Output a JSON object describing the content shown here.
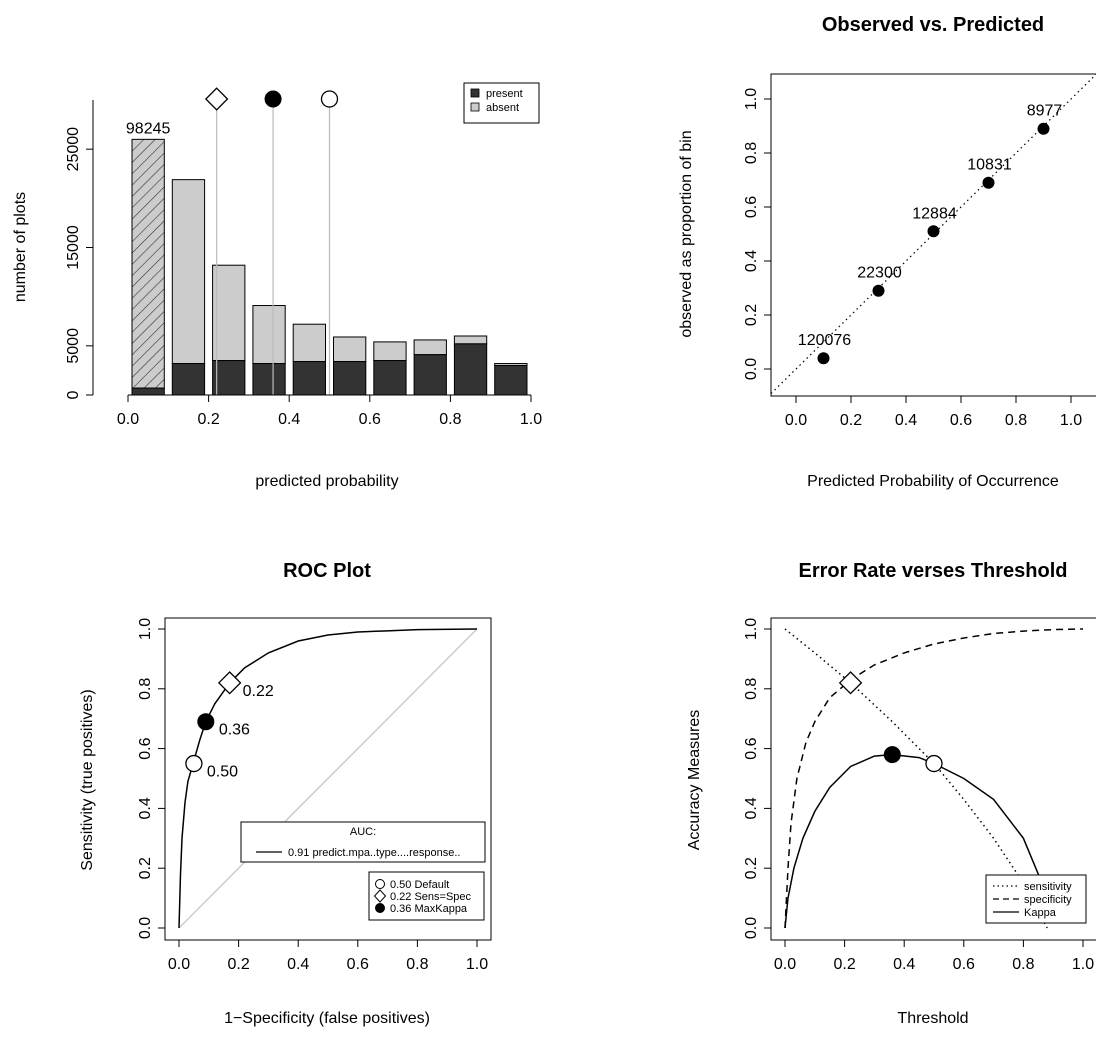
{
  "chart_data": [
    {
      "type": "bar",
      "title": "",
      "xlabel": "predicted probability",
      "ylabel": "number of plots",
      "xlim": [
        0,
        1
      ],
      "ylim": [
        0,
        30000
      ],
      "x_ticks": [
        "0.0",
        "0.2",
        "0.4",
        "0.6",
        "0.8",
        "1.0"
      ],
      "y_ticks": [
        "0",
        "5000",
        "15000",
        "25000"
      ],
      "bins": [
        [
          0,
          0.1
        ],
        [
          0.1,
          0.2
        ],
        [
          0.2,
          0.3
        ],
        [
          0.3,
          0.4
        ],
        [
          0.4,
          0.5
        ],
        [
          0.5,
          0.6
        ],
        [
          0.6,
          0.7
        ],
        [
          0.7,
          0.8
        ],
        [
          0.8,
          0.9
        ],
        [
          0.9,
          1.0
        ]
      ],
      "series": [
        {
          "name": "present",
          "color": "#333333",
          "values": [
            700,
            3200,
            3500,
            3200,
            3400,
            3400,
            3500,
            4100,
            5200,
            3000
          ]
        },
        {
          "name": "absent",
          "color": "#cccccc",
          "values": [
            25300,
            18700,
            9700,
            5900,
            3800,
            2500,
            1900,
            1500,
            800,
            200
          ]
        }
      ],
      "first_bar_label": "98245",
      "first_bar_hatched": true,
      "threshold_markers": [
        {
          "x": 0.22,
          "symbol": "open-diamond"
        },
        {
          "x": 0.36,
          "symbol": "filled-circle"
        },
        {
          "x": 0.5,
          "symbol": "open-circle"
        }
      ],
      "legend": {
        "position": "top-right",
        "entries": [
          "present",
          "absent"
        ]
      }
    },
    {
      "type": "scatter",
      "title": "Observed vs. Predicted",
      "xlabel": "Predicted Probability of Occurrence",
      "ylabel": "observed as proportion of bin",
      "xlim": [
        0,
        1
      ],
      "ylim": [
        0,
        1
      ],
      "x_ticks": [
        "0.0",
        "0.2",
        "0.4",
        "0.6",
        "0.8",
        "1.0"
      ],
      "y_ticks": [
        "0.0",
        "0.2",
        "0.4",
        "0.6",
        "0.8",
        "1.0"
      ],
      "points": [
        {
          "x": 0.1,
          "y": 0.04,
          "label": "120076"
        },
        {
          "x": 0.3,
          "y": 0.29,
          "label": "22300"
        },
        {
          "x": 0.5,
          "y": 0.51,
          "label": "12884"
        },
        {
          "x": 0.7,
          "y": 0.69,
          "label": "10831"
        },
        {
          "x": 0.9,
          "y": 0.89,
          "label": "8977"
        }
      ],
      "reference_line": "dotted 1:1"
    },
    {
      "type": "line",
      "title": "ROC Plot",
      "xlabel": "1−Specificity (false positives)",
      "ylabel": "Sensitivity (true positives)",
      "xlim": [
        0,
        1
      ],
      "ylim": [
        0,
        1
      ],
      "x_ticks": [
        "0.0",
        "0.2",
        "0.4",
        "0.6",
        "0.8",
        "1.0"
      ],
      "y_ticks": [
        "0.0",
        "0.2",
        "0.4",
        "0.6",
        "0.8",
        "1.0"
      ],
      "curve": {
        "x": [
          0,
          0.005,
          0.01,
          0.02,
          0.03,
          0.05,
          0.07,
          0.09,
          0.12,
          0.17,
          0.22,
          0.3,
          0.4,
          0.5,
          0.6,
          0.8,
          1.0
        ],
        "y": [
          0,
          0.18,
          0.3,
          0.42,
          0.49,
          0.56,
          0.63,
          0.69,
          0.75,
          0.82,
          0.87,
          0.92,
          0.96,
          0.98,
          0.99,
          0.998,
          1.0
        ]
      },
      "diagonal": {
        "x": [
          0,
          1
        ],
        "y": [
          0,
          1
        ],
        "color": "#cccccc"
      },
      "points": [
        {
          "x": 0.17,
          "y": 0.82,
          "label": "0.22",
          "symbol": "open-diamond"
        },
        {
          "x": 0.09,
          "y": 0.69,
          "label": "0.36",
          "symbol": "filled-circle"
        },
        {
          "x": 0.05,
          "y": 0.55,
          "label": "0.50",
          "symbol": "open-circle"
        }
      ],
      "auc_legend": {
        "title": "AUC:",
        "entry": "0.91 predict.mpa..type....response.."
      },
      "legend": {
        "position": "bottom-right",
        "entries": [
          "0.50 Default",
          "0.22 Sens=Spec",
          "0.36 MaxKappa"
        ]
      }
    },
    {
      "type": "line",
      "title": "Error Rate verses Threshold",
      "xlabel": "Threshold",
      "ylabel": "Accuracy Measures",
      "xlim": [
        0,
        1
      ],
      "ylim": [
        0,
        1
      ],
      "x_ticks": [
        "0.0",
        "0.2",
        "0.4",
        "0.6",
        "0.8",
        "1.0"
      ],
      "y_ticks": [
        "0.0",
        "0.2",
        "0.4",
        "0.6",
        "0.8",
        "1.0"
      ],
      "series": [
        {
          "name": "sensitivity",
          "style": "dotted",
          "x": [
            0,
            0.1,
            0.22,
            0.36,
            0.5,
            0.6,
            0.7,
            0.8,
            0.88
          ],
          "y": [
            1.0,
            0.92,
            0.82,
            0.69,
            0.55,
            0.43,
            0.3,
            0.15,
            0.0
          ]
        },
        {
          "name": "specificity",
          "style": "dashed",
          "x": [
            0,
            0.01,
            0.02,
            0.04,
            0.07,
            0.1,
            0.15,
            0.22,
            0.3,
            0.4,
            0.5,
            0.6,
            0.7,
            0.8,
            0.9,
            1.0
          ],
          "y": [
            0.0,
            0.2,
            0.35,
            0.5,
            0.62,
            0.69,
            0.77,
            0.83,
            0.88,
            0.92,
            0.95,
            0.97,
            0.985,
            0.993,
            0.998,
            1.0
          ]
        },
        {
          "name": "Kappa",
          "style": "solid",
          "x": [
            0,
            0.01,
            0.03,
            0.06,
            0.1,
            0.15,
            0.22,
            0.3,
            0.36,
            0.45,
            0.5,
            0.6,
            0.7,
            0.8,
            0.85,
            0.88
          ],
          "y": [
            0.0,
            0.1,
            0.2,
            0.3,
            0.39,
            0.47,
            0.54,
            0.575,
            0.58,
            0.57,
            0.55,
            0.5,
            0.43,
            0.3,
            0.18,
            0.1
          ]
        }
      ],
      "points": [
        {
          "x": 0.22,
          "y": 0.82,
          "symbol": "open-diamond"
        },
        {
          "x": 0.36,
          "y": 0.58,
          "symbol": "filled-circle"
        },
        {
          "x": 0.5,
          "y": 0.55,
          "symbol": "open-circle"
        }
      ],
      "legend": {
        "position": "bottom-right",
        "entries": [
          "sensitivity",
          "specificity",
          "Kappa"
        ]
      }
    }
  ]
}
